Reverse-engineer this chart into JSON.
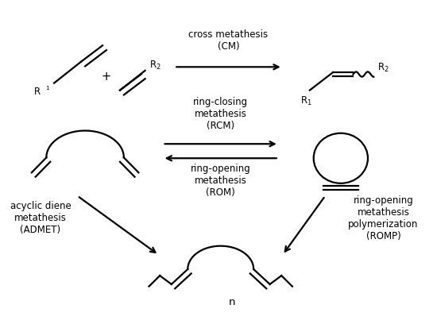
{
  "bg_color": "#ffffff",
  "text_color": "#000000",
  "lw": 1.6,
  "labels": {
    "cross_metathesis": "cross metathesis\n(CM)",
    "rcm": "ring-closing\nmetathesis\n(RCM)",
    "rom": "ring-opening\nmetathesis\n(ROM)",
    "admet": "acyclic diene\nmetathesis\n(ADMET)",
    "romp": "ring-opening\nmetathesis\npolymerization\n(ROMP)",
    "n": "n"
  },
  "figsize": [
    5.5,
    4.14
  ],
  "dpi": 100
}
